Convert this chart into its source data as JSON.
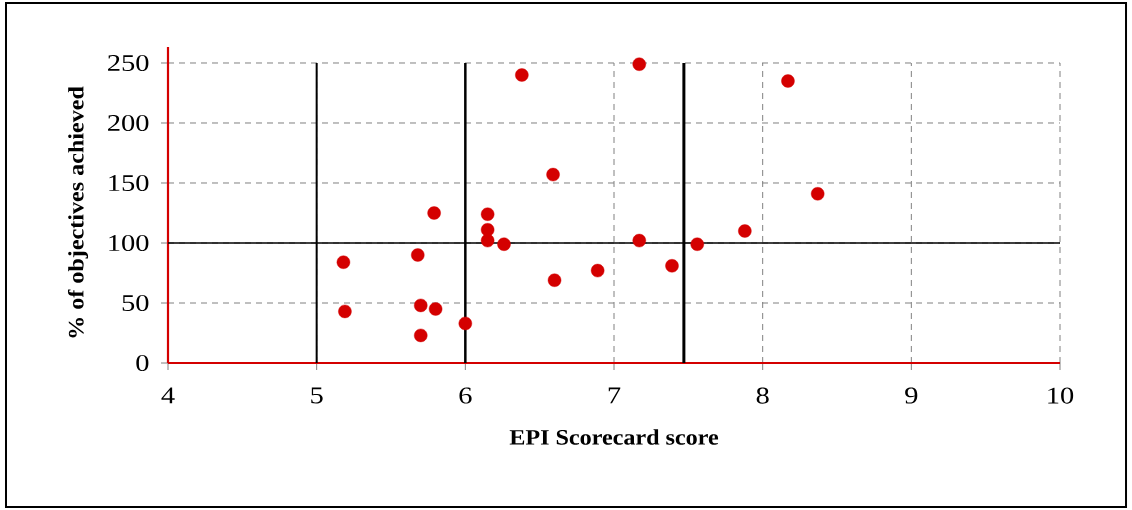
{
  "chart_data": {
    "type": "scatter",
    "xlabel": "EPI Scorecard score",
    "ylabel": "% of objectives achieved",
    "x": [
      5.18,
      5.19,
      5.68,
      5.7,
      5.8,
      5.7,
      5.79,
      6,
      6.15,
      6.15,
      6.15,
      6.26,
      6.38,
      6.59,
      6.6,
      6.89,
      7.17,
      7.17,
      7.39,
      7.56,
      7.88,
      8.17,
      8.37
    ],
    "values": [
      84,
      43,
      90,
      48,
      45,
      23,
      125,
      33,
      124,
      111,
      102,
      99,
      240,
      157,
      69,
      77,
      249,
      102,
      81,
      99,
      110,
      235,
      141
    ],
    "color": "#d40000",
    "marker": "circle",
    "xlim": [
      4,
      10
    ],
    "ylim": [
      0,
      250
    ],
    "xticks": [
      4,
      5,
      6,
      7,
      8,
      9,
      10
    ],
    "yticks": [
      0,
      50,
      100,
      150,
      200,
      250
    ],
    "grid": true,
    "ref_lines": [
      {
        "axis": "y",
        "value": 100,
        "color": "#000000",
        "line_style": "solid"
      },
      {
        "axis": "x",
        "value": 5,
        "color": "#000000",
        "line_style": "solid"
      },
      {
        "axis": "x",
        "value": 6,
        "color": "#000000",
        "line_style": "solid"
      },
      {
        "axis": "x",
        "value": 7.47,
        "color": "#000000",
        "line_style": "solid"
      }
    ]
  }
}
